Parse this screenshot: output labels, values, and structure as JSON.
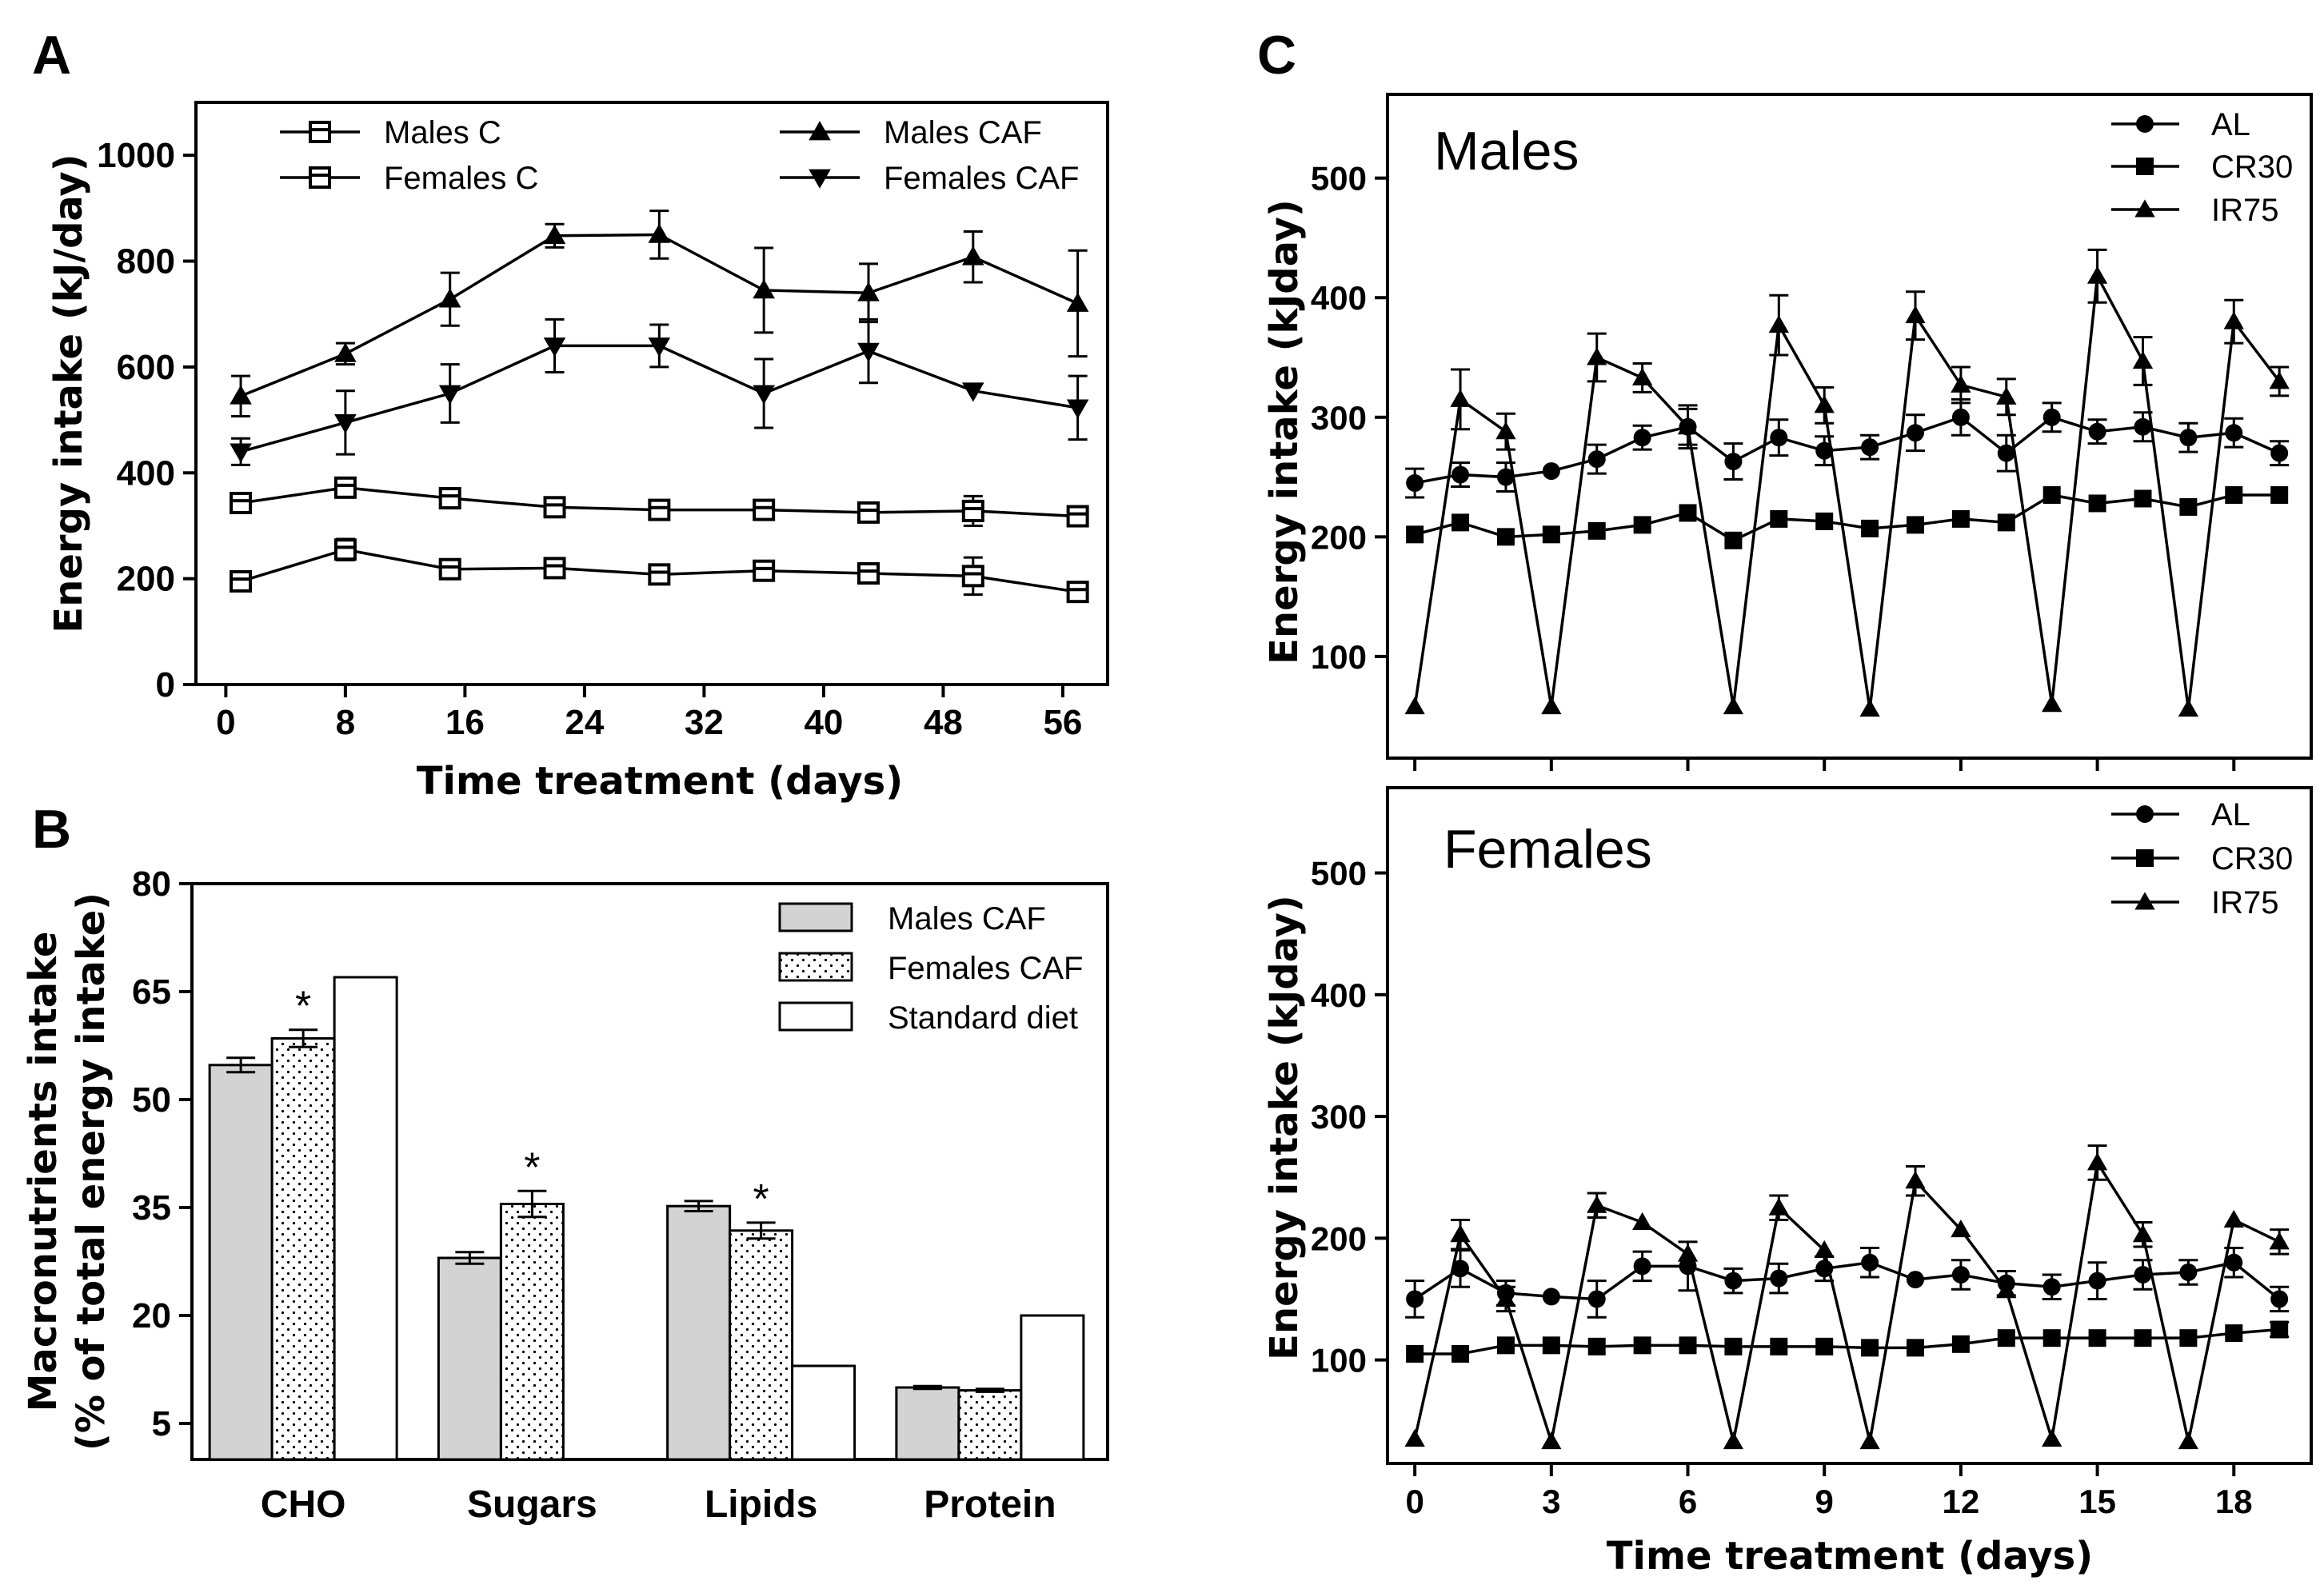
{
  "panels": {
    "A": {
      "letter": "A"
    },
    "B": {
      "letter": "B"
    },
    "C": {
      "letter": "C"
    }
  },
  "chart_data": [
    {
      "id": "A",
      "type": "line",
      "xlabel": "Time treatment (days)",
      "ylabel": "Energy intake (kJ/day)",
      "xlim": [
        -2,
        59
      ],
      "ylim": [
        0,
        1100
      ],
      "xticks": [
        0,
        8,
        16,
        24,
        32,
        40,
        48,
        56
      ],
      "yticks": [
        0,
        200,
        400,
        600,
        800,
        1000
      ],
      "x": [
        1,
        8,
        15,
        22,
        29,
        36,
        43,
        50,
        57
      ],
      "series": [
        {
          "name": "Males C",
          "marker": "square-open-bar",
          "values": [
            343,
            372,
            352,
            335,
            330,
            330,
            325,
            328,
            318
          ],
          "errors": [
            10,
            18,
            10,
            12,
            10,
            10,
            15,
            28,
            12
          ]
        },
        {
          "name": "Females C",
          "marker": "square-open-bar",
          "values": [
            195,
            255,
            218,
            220,
            208,
            215,
            210,
            205,
            175
          ],
          "errors": [
            8,
            20,
            18,
            12,
            10,
            10,
            10,
            35,
            15
          ]
        },
        {
          "name": "Males CAF",
          "marker": "triangle-up",
          "values": [
            545,
            625,
            728,
            848,
            850,
            745,
            740,
            808,
            720
          ],
          "errors": [
            38,
            20,
            50,
            22,
            45,
            80,
            55,
            48,
            100
          ]
        },
        {
          "name": "Females CAF",
          "marker": "triangle-down",
          "values": [
            440,
            495,
            550,
            640,
            640,
            550,
            630,
            555,
            523
          ],
          "errors": [
            25,
            60,
            55,
            50,
            40,
            65,
            60,
            0,
            60
          ]
        }
      ],
      "legend": [
        {
          "label": "Males C",
          "marker": "square-open-bar"
        },
        {
          "label": "Females C",
          "marker": "square-open-bar"
        },
        {
          "label": "Males CAF",
          "marker": "triangle-up"
        },
        {
          "label": "Females CAF",
          "marker": "triangle-down"
        }
      ]
    },
    {
      "id": "B",
      "type": "bar",
      "ylabel_line1": "Macronutrients intake",
      "ylabel_line2": "(% of total energy intake)",
      "ylim": [
        0,
        80
      ],
      "yticks": [
        5,
        20,
        35,
        50,
        65,
        80
      ],
      "categories": [
        "CHO",
        "Sugars",
        "Lipids",
        "Protein"
      ],
      "series": [
        {
          "name": "Males CAF",
          "fill": "#d3d3d3",
          "values": [
            54.8,
            28.0,
            35.2,
            10.0
          ],
          "errors": [
            1.0,
            0.8,
            0.7,
            0.2
          ]
        },
        {
          "name": "Females CAF",
          "fill": "dots",
          "values": [
            58.5,
            35.5,
            31.8,
            9.6
          ],
          "errors": [
            1.2,
            1.8,
            1.1,
            0.2
          ]
        },
        {
          "name": "Standard diet",
          "fill": "#ffffff",
          "values": [
            67.0,
            null,
            13.0,
            20.0
          ],
          "errors": [
            0,
            0,
            0,
            0
          ]
        }
      ],
      "annotations": [
        {
          "category": "CHO",
          "series": "Females CAF",
          "text": "*"
        },
        {
          "category": "Sugars",
          "series": "Females CAF",
          "text": "*"
        },
        {
          "category": "Lipids",
          "series": "Females CAF",
          "text": "*"
        }
      ]
    },
    {
      "id": "C-males",
      "type": "line",
      "title": "Males",
      "ylabel": "Energy intake (kJday)",
      "xlim": [
        -0.6,
        19.7
      ],
      "ylim": [
        15,
        570
      ],
      "xticks": [
        0,
        3,
        6,
        9,
        12,
        15,
        18
      ],
      "yticks": [
        100,
        200,
        300,
        400,
        500
      ],
      "x": [
        0,
        1,
        2,
        3,
        4,
        5,
        6,
        7,
        8,
        9,
        10,
        11,
        12,
        13,
        14,
        15,
        16,
        17,
        18,
        19
      ],
      "series": [
        {
          "name": "AL",
          "marker": "circle",
          "values": [
            245,
            252,
            250,
            255,
            265,
            283,
            292,
            263,
            283,
            272,
            275,
            287,
            300,
            270,
            300,
            288,
            292,
            283,
            287,
            270
          ],
          "errors": [
            12,
            10,
            12,
            0,
            12,
            10,
            15,
            15,
            15,
            12,
            10,
            15,
            15,
            15,
            12,
            10,
            12,
            12,
            12,
            10
          ]
        },
        {
          "name": "CR30",
          "marker": "square",
          "values": [
            202,
            212,
            200,
            202,
            205,
            210,
            220,
            197,
            215,
            213,
            207,
            210,
            215,
            212,
            235,
            228,
            232,
            225,
            235,
            235
          ],
          "errors": [
            0,
            0,
            0,
            0,
            0,
            0,
            0,
            0,
            0,
            0,
            0,
            0,
            0,
            0,
            0,
            0,
            0,
            0,
            0,
            0
          ]
        },
        {
          "name": "IR75",
          "marker": "triangle-up",
          "values": [
            58,
            315,
            288,
            58,
            350,
            333,
            292,
            58,
            377,
            310,
            56,
            385,
            327,
            317,
            60,
            418,
            347,
            56,
            380,
            330
          ],
          "errors": [
            0,
            25,
            15,
            0,
            20,
            12,
            18,
            0,
            25,
            15,
            0,
            20,
            15,
            15,
            0,
            22,
            20,
            0,
            18,
            12
          ]
        }
      ],
      "legend": [
        {
          "label": "AL",
          "marker": "circle"
        },
        {
          "label": "CR30",
          "marker": "square"
        },
        {
          "label": "IR75",
          "marker": "triangle-up"
        }
      ]
    },
    {
      "id": "C-females",
      "type": "line",
      "title": "Females",
      "ylabel": "Energy intake (kJday)",
      "xlabel": "Time treatment (days)",
      "xlim": [
        -0.6,
        19.7
      ],
      "ylim": [
        15,
        570
      ],
      "xticks": [
        0,
        3,
        6,
        9,
        12,
        15,
        18
      ],
      "yticks": [
        100,
        200,
        300,
        400,
        500
      ],
      "x": [
        0,
        1,
        2,
        3,
        4,
        5,
        6,
        7,
        8,
        9,
        10,
        11,
        12,
        13,
        14,
        15,
        16,
        17,
        18,
        19
      ],
      "series": [
        {
          "name": "AL",
          "marker": "circle",
          "values": [
            150,
            175,
            155,
            152,
            150,
            177,
            177,
            165,
            167,
            175,
            180,
            166,
            170,
            163,
            160,
            165,
            170,
            172,
            180,
            150
          ],
          "errors": [
            15,
            15,
            10,
            0,
            15,
            12,
            20,
            10,
            12,
            10,
            12,
            0,
            12,
            10,
            10,
            15,
            12,
            10,
            12,
            10
          ]
        },
        {
          "name": "CR30",
          "marker": "square",
          "values": [
            105,
            105,
            112,
            112,
            111,
            112,
            112,
            111,
            111,
            111,
            110,
            110,
            113,
            118,
            118,
            118,
            118,
            118,
            122,
            125
          ],
          "errors": [
            0,
            0,
            0,
            0,
            0,
            0,
            0,
            0,
            0,
            0,
            0,
            0,
            0,
            0,
            0,
            0,
            0,
            0,
            0,
            6
          ]
        },
        {
          "name": "IR75",
          "marker": "triangle-up",
          "values": [
            35,
            203,
            150,
            33,
            227,
            213,
            187,
            33,
            225,
            190,
            33,
            247,
            207,
            157,
            35,
            262,
            203,
            33,
            215,
            197
          ],
          "errors": [
            0,
            12,
            10,
            0,
            10,
            0,
            0,
            0,
            10,
            0,
            0,
            12,
            0,
            0,
            0,
            14,
            10,
            0,
            0,
            10
          ]
        }
      ],
      "legend": [
        {
          "label": "AL",
          "marker": "circle"
        },
        {
          "label": "CR30",
          "marker": "square"
        },
        {
          "label": "IR75",
          "marker": "triangle-up"
        }
      ]
    }
  ]
}
